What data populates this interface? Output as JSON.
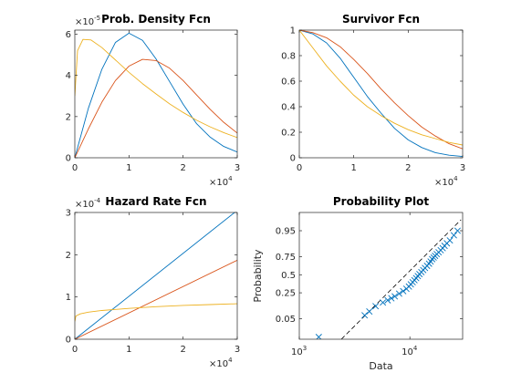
{
  "chart_data": [
    {
      "type": "line",
      "title": "Prob. Density Fcn",
      "x_exponent_label": {
        "base": "×10",
        "power": "4"
      },
      "y_exponent_label": {
        "base": "×10",
        "power": "-5"
      },
      "xlim": [
        0,
        3
      ],
      "ylim": [
        0,
        6.2
      ],
      "xticks": [
        "0",
        "1",
        "2",
        "3"
      ],
      "yticks": [
        "0",
        "2",
        "4",
        "6"
      ],
      "series": [
        {
          "color": "#0072BD",
          "x": [
            0,
            0.25,
            0.5,
            0.75,
            1.0,
            1.25,
            1.5,
            1.75,
            2.0,
            2.25,
            2.5,
            2.75,
            3.0
          ],
          "y": [
            0.0,
            2.4,
            4.3,
            5.6,
            6.05,
            5.7,
            4.8,
            3.7,
            2.6,
            1.65,
            1.0,
            0.55,
            0.28
          ]
        },
        {
          "color": "#D95319",
          "x": [
            0,
            0.25,
            0.5,
            0.75,
            1.0,
            1.25,
            1.5,
            1.75,
            2.0,
            2.25,
            2.5,
            2.75,
            3.0
          ],
          "y": [
            0.0,
            1.4,
            2.7,
            3.75,
            4.45,
            4.78,
            4.72,
            4.35,
            3.75,
            3.05,
            2.35,
            1.72,
            1.2
          ]
        },
        {
          "color": "#EDB120",
          "x": [
            0,
            0.05,
            0.15,
            0.3,
            0.5,
            0.75,
            1.0,
            1.25,
            1.5,
            1.75,
            2.0,
            2.25,
            2.5,
            2.75,
            3.0
          ],
          "y": [
            3.0,
            5.2,
            5.75,
            5.72,
            5.35,
            4.75,
            4.15,
            3.6,
            3.1,
            2.62,
            2.2,
            1.82,
            1.5,
            1.22,
            0.98
          ]
        }
      ]
    },
    {
      "type": "line",
      "title": "Survivor Fcn",
      "x_exponent_label": {
        "base": "×10",
        "power": "4"
      },
      "xlim": [
        0,
        3
      ],
      "ylim": [
        0,
        1
      ],
      "xticks": [
        "0",
        "1",
        "2",
        "3"
      ],
      "yticks": [
        "0",
        "0.2",
        "0.4",
        "0.6",
        "0.8",
        "1"
      ],
      "series": [
        {
          "color": "#0072BD",
          "x": [
            0,
            0.25,
            0.5,
            0.75,
            1.0,
            1.25,
            1.5,
            1.75,
            2.0,
            2.25,
            2.5,
            2.75,
            3.0
          ],
          "y": [
            1.0,
            0.97,
            0.9,
            0.78,
            0.63,
            0.48,
            0.35,
            0.23,
            0.14,
            0.08,
            0.04,
            0.02,
            0.01
          ]
        },
        {
          "color": "#D95319",
          "x": [
            0,
            0.25,
            0.5,
            0.75,
            1.0,
            1.25,
            1.5,
            1.75,
            2.0,
            2.25,
            2.5,
            2.75,
            3.0
          ],
          "y": [
            1.0,
            0.98,
            0.94,
            0.87,
            0.77,
            0.66,
            0.54,
            0.43,
            0.33,
            0.24,
            0.17,
            0.11,
            0.07
          ]
        },
        {
          "color": "#EDB120",
          "x": [
            0,
            0.25,
            0.5,
            0.75,
            1.0,
            1.25,
            1.5,
            1.75,
            2.0,
            2.25,
            2.5,
            2.75,
            3.0
          ],
          "y": [
            1.0,
            0.86,
            0.72,
            0.6,
            0.49,
            0.4,
            0.33,
            0.27,
            0.22,
            0.18,
            0.15,
            0.12,
            0.1
          ]
        }
      ]
    },
    {
      "type": "line",
      "title": "Hazard Rate Fcn",
      "x_exponent_label": {
        "base": "×10",
        "power": "4"
      },
      "y_exponent_label": {
        "base": "×10",
        "power": "-4"
      },
      "xlim": [
        0,
        3
      ],
      "ylim": [
        0,
        3
      ],
      "xticks": [
        "0",
        "1",
        "2",
        "3"
      ],
      "yticks": [
        "0",
        "1",
        "2",
        "3"
      ],
      "series": [
        {
          "color": "#0072BD",
          "x": [
            0,
            3.0
          ],
          "y": [
            0.0,
            3.05
          ]
        },
        {
          "color": "#D95319",
          "x": [
            0,
            3.0
          ],
          "y": [
            0.0,
            1.87
          ]
        },
        {
          "color": "#EDB120",
          "x": [
            0,
            0.02,
            0.1,
            0.25,
            0.5,
            1.0,
            1.5,
            2.0,
            2.5,
            3.0
          ],
          "y": [
            0.42,
            0.55,
            0.6,
            0.64,
            0.68,
            0.73,
            0.77,
            0.8,
            0.82,
            0.84
          ]
        }
      ]
    },
    {
      "type": "scatter",
      "title": "Probability Plot",
      "xlabel": "Data",
      "ylabel": "Probability",
      "x_scale": "log",
      "xlim": [
        1000,
        30000
      ],
      "y_scale": "normal-probability",
      "ylim": [
        0.008,
        0.99
      ],
      "xticks": [
        {
          "value": 1000,
          "base": "10",
          "power": "3"
        },
        {
          "value": 10000,
          "base": "10",
          "power": "4"
        }
      ],
      "yticks": [
        {
          "value": 0.05,
          "label": "0.05"
        },
        {
          "value": 0.25,
          "label": "0.25"
        },
        {
          "value": 0.5,
          "label": "0.5"
        },
        {
          "value": 0.75,
          "label": "0.75"
        },
        {
          "value": 0.95,
          "label": "0.95"
        }
      ],
      "marker": "x",
      "marker_color": "#0072BD",
      "points": {
        "x": [
          1500,
          3900,
          4300,
          4900,
          5700,
          6300,
          6800,
          7300,
          8000,
          8700,
          9300,
          9800,
          10200,
          10600,
          11000,
          11400,
          11800,
          12200,
          12700,
          13200,
          13700,
          14300,
          14900,
          15400,
          15900,
          16400,
          16900,
          17500,
          18200,
          19000,
          19800,
          20600,
          21600,
          23000,
          25000,
          27000
        ],
        "y": [
          0.01,
          0.065,
          0.085,
          0.12,
          0.15,
          0.17,
          0.19,
          0.21,
          0.24,
          0.27,
          0.3,
          0.33,
          0.36,
          0.39,
          0.42,
          0.45,
          0.48,
          0.51,
          0.54,
          0.57,
          0.6,
          0.63,
          0.66,
          0.69,
          0.72,
          0.74,
          0.76,
          0.78,
          0.8,
          0.82,
          0.84,
          0.86,
          0.88,
          0.9,
          0.93,
          0.95
        ]
      },
      "reference_line": {
        "style": "dashed",
        "color": "#000000",
        "x": [
          2400,
          29000
        ],
        "y": [
          0.008,
          0.98
        ]
      }
    }
  ]
}
